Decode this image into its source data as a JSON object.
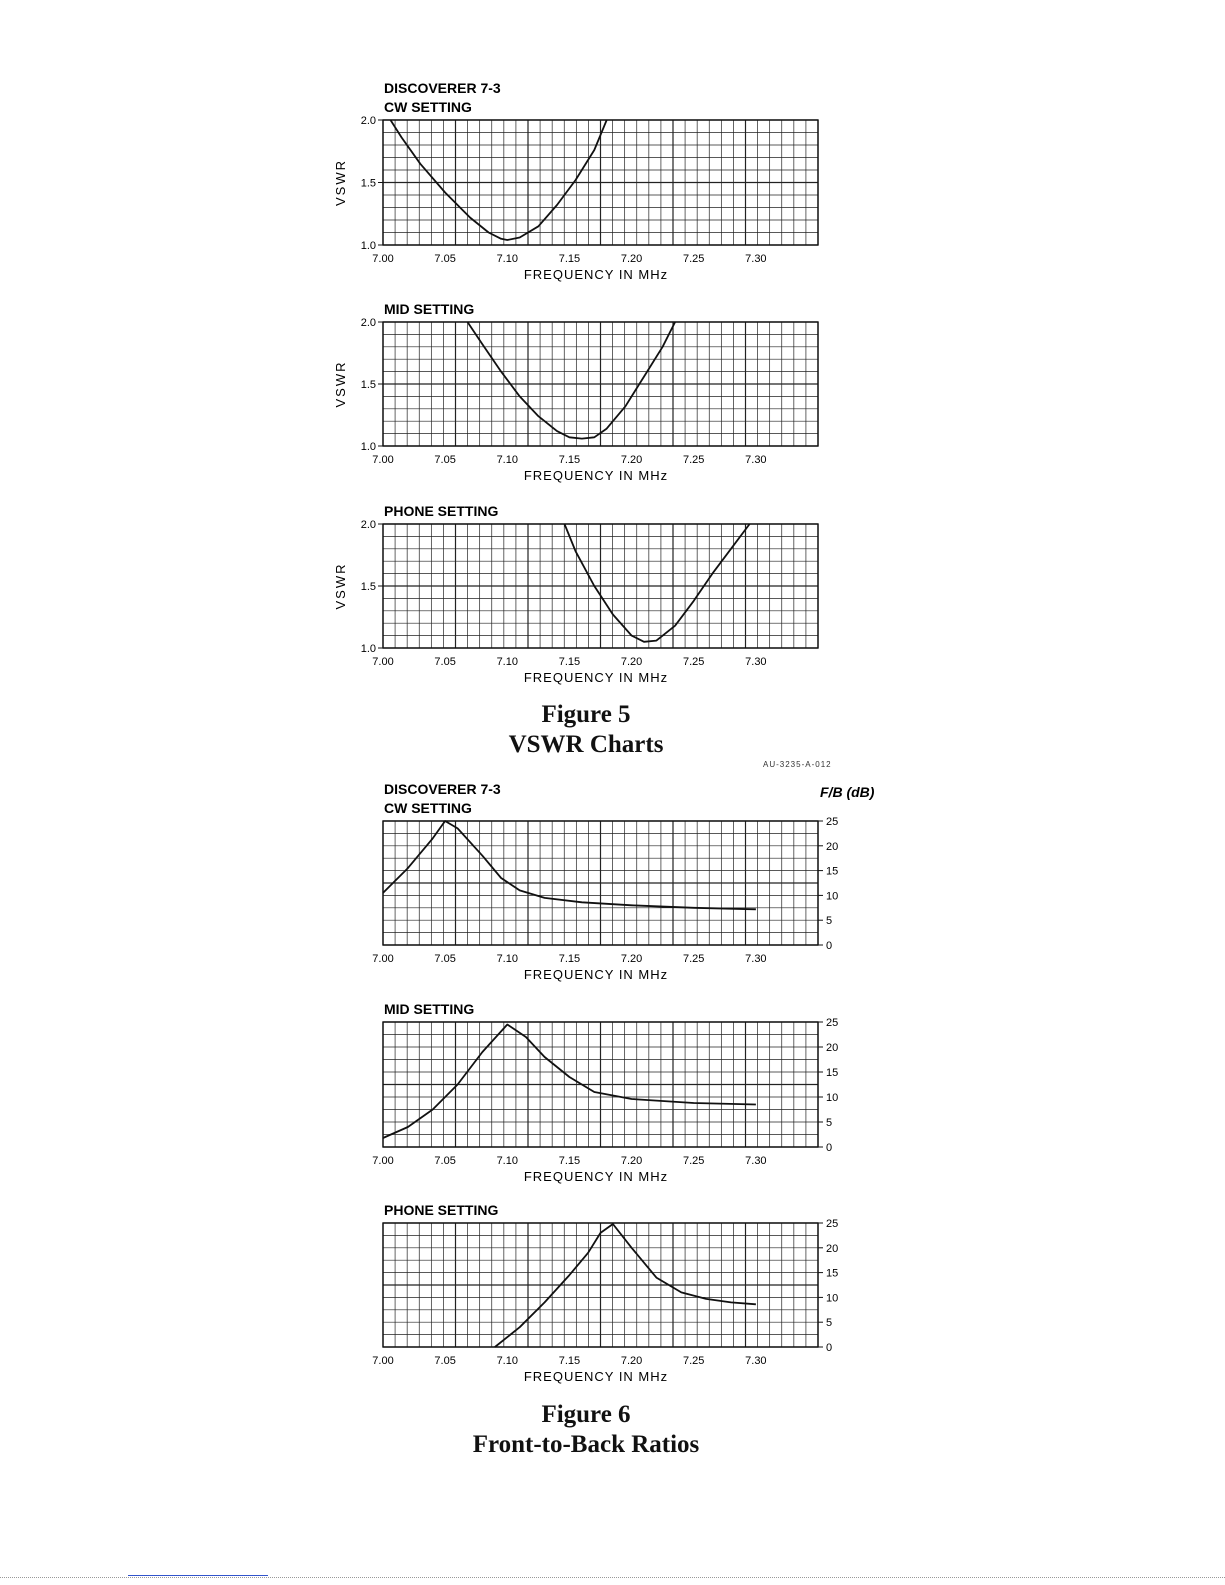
{
  "figure5": {
    "caption_line1": "Figure 5",
    "caption_line2": "VSWR Charts",
    "code": "AU-3235-A-012"
  },
  "figure6": {
    "caption_line1": "Figure 6",
    "caption_line2": "Front-to-Back Ratios",
    "right_axis_label": "F/B (dB)"
  },
  "chart_data": [
    {
      "type": "line",
      "figure": "Figure 5",
      "title": "DISCOVERER 7-3",
      "subtitle": "CW SETTING",
      "xlabel": "FREQUENCY IN MHz",
      "ylabel": "VSWR",
      "xlim": [
        7.0,
        7.35
      ],
      "ylim": [
        1.0,
        2.0
      ],
      "xticks": [
        "7.00",
        "7.05",
        "7.10",
        "7.15",
        "7.20",
        "7.25",
        "7.30"
      ],
      "yticks": [
        "1.0",
        "1.5",
        "2.0"
      ],
      "grid": true,
      "series": [
        {
          "x": [
            7.006,
            7.015,
            7.03,
            7.05,
            7.07,
            7.085,
            7.095,
            7.1,
            7.11,
            7.125,
            7.14,
            7.155,
            7.17,
            7.18
          ],
          "y": [
            2.0,
            1.86,
            1.65,
            1.42,
            1.22,
            1.1,
            1.05,
            1.04,
            1.06,
            1.15,
            1.32,
            1.52,
            1.76,
            2.0
          ]
        }
      ]
    },
    {
      "type": "line",
      "figure": "Figure 5",
      "title": "",
      "subtitle": "MID SETTING",
      "xlabel": "FREQUENCY IN MHz",
      "ylabel": "VSWR",
      "xlim": [
        7.0,
        7.35
      ],
      "ylim": [
        1.0,
        2.0
      ],
      "xticks": [
        "7.00",
        "7.05",
        "7.10",
        "7.15",
        "7.20",
        "7.25",
        "7.30"
      ],
      "yticks": [
        "1.0",
        "1.5",
        "2.0"
      ],
      "grid": true,
      "series": [
        {
          "x": [
            7.068,
            7.08,
            7.095,
            7.11,
            7.125,
            7.14,
            7.15,
            7.16,
            7.17,
            7.18,
            7.195,
            7.21,
            7.225,
            7.235
          ],
          "y": [
            2.0,
            1.82,
            1.6,
            1.4,
            1.24,
            1.12,
            1.07,
            1.06,
            1.07,
            1.14,
            1.32,
            1.56,
            1.8,
            2.0
          ]
        }
      ]
    },
    {
      "type": "line",
      "figure": "Figure 5",
      "title": "",
      "subtitle": "PHONE SETTING",
      "xlabel": "FREQUENCY IN MHz",
      "ylabel": "VSWR",
      "xlim": [
        7.0,
        7.35
      ],
      "ylim": [
        1.0,
        2.0
      ],
      "xticks": [
        "7.00",
        "7.05",
        "7.10",
        "7.15",
        "7.20",
        "7.25",
        "7.30"
      ],
      "yticks": [
        "1.0",
        "1.5",
        "2.0"
      ],
      "grid": true,
      "series": [
        {
          "x": [
            7.146,
            7.155,
            7.17,
            7.185,
            7.2,
            7.21,
            7.22,
            7.235,
            7.25,
            7.265,
            7.28,
            7.295
          ],
          "y": [
            2.0,
            1.78,
            1.5,
            1.27,
            1.1,
            1.05,
            1.06,
            1.18,
            1.38,
            1.6,
            1.8,
            2.0
          ]
        }
      ]
    },
    {
      "type": "line",
      "figure": "Figure 6",
      "title": "DISCOVERER 7-3",
      "subtitle": "CW SETTING",
      "xlabel": "FREQUENCY IN MHz",
      "ylabel": "F/B (dB)",
      "y_axis_side": "right",
      "xlim": [
        7.0,
        7.35
      ],
      "ylim": [
        0,
        25
      ],
      "xticks": [
        "7.00",
        "7.05",
        "7.10",
        "7.15",
        "7.20",
        "7.25",
        "7.30"
      ],
      "yticks": [
        "0",
        "5",
        "10",
        "15",
        "20",
        "25"
      ],
      "grid": true,
      "series": [
        {
          "x": [
            7.0,
            7.02,
            7.04,
            7.05,
            7.06,
            7.08,
            7.095,
            7.11,
            7.13,
            7.16,
            7.2,
            7.25,
            7.3
          ],
          "y": [
            10.5,
            15.5,
            21.5,
            25.0,
            23.5,
            18.0,
            13.5,
            11.0,
            9.5,
            8.6,
            8.0,
            7.5,
            7.2
          ]
        }
      ]
    },
    {
      "type": "line",
      "figure": "Figure 6",
      "title": "",
      "subtitle": "MID SETTING",
      "xlabel": "FREQUENCY IN MHz",
      "ylabel": "F/B (dB)",
      "y_axis_side": "right",
      "xlim": [
        7.0,
        7.35
      ],
      "ylim": [
        0,
        25
      ],
      "xticks": [
        "7.00",
        "7.05",
        "7.10",
        "7.15",
        "7.20",
        "7.25",
        "7.30"
      ],
      "yticks": [
        "0",
        "5",
        "10",
        "15",
        "20",
        "25"
      ],
      "grid": true,
      "series": [
        {
          "x": [
            7.0,
            7.02,
            7.04,
            7.06,
            7.08,
            7.1,
            7.115,
            7.13,
            7.15,
            7.17,
            7.2,
            7.25,
            7.3
          ],
          "y": [
            1.8,
            4.0,
            7.5,
            12.5,
            19.0,
            24.5,
            22.0,
            18.0,
            14.0,
            11.0,
            9.6,
            8.8,
            8.5
          ]
        }
      ]
    },
    {
      "type": "line",
      "figure": "Figure 6",
      "title": "",
      "subtitle": "PHONE SETTING",
      "xlabel": "FREQUENCY IN MHz",
      "ylabel": "F/B (dB)",
      "y_axis_side": "right",
      "xlim": [
        7.0,
        7.35
      ],
      "ylim": [
        0,
        25
      ],
      "xticks": [
        "7.00",
        "7.05",
        "7.10",
        "7.15",
        "7.20",
        "7.25",
        "7.30"
      ],
      "yticks": [
        "0",
        "5",
        "10",
        "15",
        "20",
        "25"
      ],
      "grid": true,
      "series": [
        {
          "x": [
            7.09,
            7.11,
            7.13,
            7.15,
            7.165,
            7.175,
            7.185,
            7.2,
            7.22,
            7.24,
            7.26,
            7.28,
            7.3
          ],
          "y": [
            0.0,
            4.0,
            9.0,
            14.5,
            19.0,
            23.0,
            24.8,
            20.0,
            14.0,
            11.0,
            9.7,
            9.0,
            8.6
          ]
        }
      ]
    }
  ]
}
